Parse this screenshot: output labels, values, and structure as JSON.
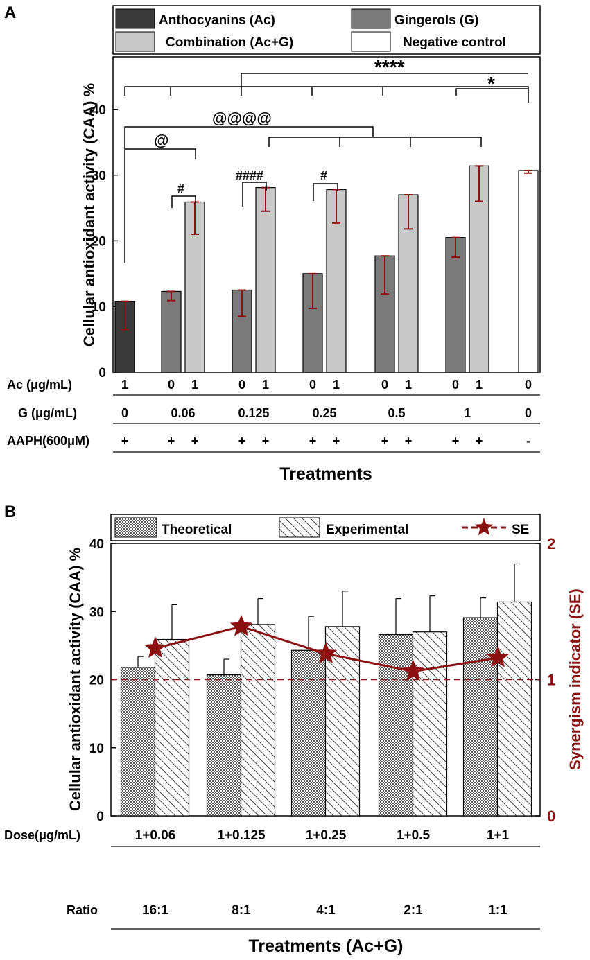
{
  "colors": {
    "ac": "#3a3a3a",
    "g": "#7a7a7a",
    "combo": "#c8c8c8",
    "negative": "#ffffff",
    "error": "#8b1010",
    "se": "#8b1010"
  },
  "chart_data": [
    {
      "panel": "A",
      "type": "bar",
      "ylabel": "Cellular antioxidant activity (CAA) %",
      "xlabel": "Treatments",
      "ylim": [
        0,
        48
      ],
      "yticks": [
        "0",
        "10",
        "20",
        "30",
        "40"
      ],
      "legend": [
        {
          "key": "ac",
          "label": "Anthocyanins (Ac)"
        },
        {
          "key": "g",
          "label": "Gingerols (G)"
        },
        {
          "key": "combo",
          "label": "Combination (Ac+G)"
        },
        {
          "key": "negative",
          "label": "Negative control"
        }
      ],
      "groups": [
        {
          "bars": [
            {
              "series": "ac",
              "value": 10.8,
              "lo": 6.5,
              "hi": 10.8
            }
          ]
        },
        {
          "bars": [
            {
              "series": "g",
              "value": 12.3,
              "lo": 10.9,
              "hi": 12.3
            },
            {
              "series": "combo",
              "value": 25.9,
              "lo": 21.0,
              "hi": 25.9
            }
          ]
        },
        {
          "bars": [
            {
              "series": "g",
              "value": 12.5,
              "lo": 8.5,
              "hi": 12.5
            },
            {
              "series": "combo",
              "value": 28.1,
              "lo": 24.5,
              "hi": 28.1
            }
          ]
        },
        {
          "bars": [
            {
              "series": "g",
              "value": 15.0,
              "lo": 9.7,
              "hi": 15.0
            },
            {
              "series": "combo",
              "value": 27.8,
              "lo": 22.7,
              "hi": 27.8
            }
          ]
        },
        {
          "bars": [
            {
              "series": "g",
              "value": 17.7,
              "lo": 11.9,
              "hi": 17.7
            },
            {
              "series": "combo",
              "value": 27.0,
              "lo": 21.8,
              "hi": 27.0
            }
          ]
        },
        {
          "bars": [
            {
              "series": "g",
              "value": 20.5,
              "lo": 17.5,
              "hi": 20.5
            },
            {
              "series": "combo",
              "value": 31.4,
              "lo": 26.0,
              "hi": 31.4
            }
          ]
        },
        {
          "bars": [
            {
              "series": "negative",
              "value": 30.7,
              "lo": 30.3,
              "hi": 30.7
            }
          ]
        }
      ],
      "table": {
        "rows": [
          {
            "label": "Ac (μg/mL)",
            "cells": [
              [
                "1"
              ],
              [
                "0",
                "1"
              ],
              [
                "0",
                "1"
              ],
              [
                "0",
                "1"
              ],
              [
                "0",
                "1"
              ],
              [
                "0",
                "1"
              ],
              [
                "0"
              ]
            ]
          },
          {
            "label": "G (μg/mL)",
            "cells": [
              "0",
              "0.06",
              "0.125",
              "0.25",
              "0.5",
              "1",
              "0"
            ]
          },
          {
            "label": "AAPH(600μM)",
            "cells": [
              [
                "+"
              ],
              [
                "+",
                "+"
              ],
              [
                "+",
                "+"
              ],
              [
                "+",
                "+"
              ],
              [
                "+",
                "+"
              ],
              [
                "+",
                "+"
              ],
              [
                "-"
              ]
            ]
          }
        ]
      },
      "annotations": {
        "stars4": "****",
        "star1": "*",
        "at4": "@@@@",
        "at1": "@",
        "hash1": "#",
        "hash4": "####",
        "hash1b": "#"
      }
    },
    {
      "panel": "B",
      "type": "bar",
      "ylabel": "Cellular antioxidant activity (CAA) %",
      "y2label": "Synergism indicator (SE)",
      "xlabel": "Treatments (Ac+G)",
      "ylim": [
        0,
        40
      ],
      "yticks": [
        "0",
        "10",
        "20",
        "30",
        "40"
      ],
      "y2lim": [
        0,
        2
      ],
      "y2ticks": [
        "0",
        "1",
        "2"
      ],
      "legend": [
        {
          "key": "theoretical",
          "label": "Theoretical"
        },
        {
          "key": "experimental",
          "label": "Experimental"
        },
        {
          "key": "se",
          "label": "SE"
        }
      ],
      "categories": [
        "1+0.06",
        "1+0.125",
        "1+0.25",
        "1+0.5",
        "1+1"
      ],
      "ratios": [
        "16:1",
        "8:1",
        "4:1",
        "2:1",
        "1:1"
      ],
      "row_labels": {
        "dose": "Dose(μg/mL)",
        "ratio": "Ratio"
      },
      "series": [
        {
          "name": "Theoretical",
          "values": [
            21.8,
            20.7,
            24.3,
            26.6,
            29.1
          ],
          "err": [
            1.6,
            2.3,
            5.0,
            5.3,
            2.9
          ]
        },
        {
          "name": "Experimental",
          "values": [
            25.9,
            28.1,
            27.8,
            27.0,
            31.4
          ],
          "err": [
            5.1,
            3.8,
            5.2,
            5.3,
            5.6
          ]
        }
      ],
      "se": [
        1.23,
        1.39,
        1.19,
        1.06,
        1.16
      ],
      "se_reference": 1
    }
  ]
}
